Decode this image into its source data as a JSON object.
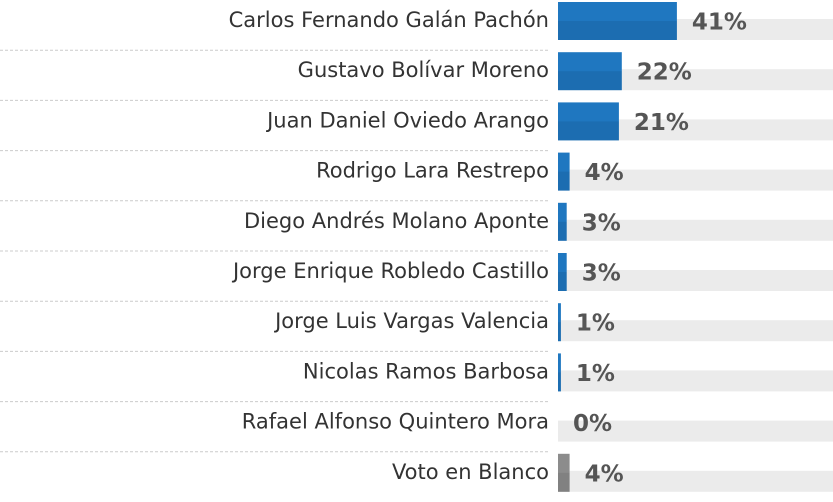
{
  "chart_data": {
    "type": "bar",
    "orientation": "horizontal",
    "categories": [
      "Carlos Fernando Galán Pachón",
      "Gustavo Bolívar Moreno",
      "Juan Daniel Oviedo Arango",
      "Rodrigo Lara Restrepo",
      "Diego Andrés Molano Aponte",
      "Jorge Enrique Robledo Castillo",
      "Jorge Luis Vargas Valencia",
      "Nicolas Ramos Barbosa",
      "Rafael Alfonso Quintero Mora",
      "Voto en Blanco"
    ],
    "values": [
      41,
      22,
      21,
      4,
      3,
      3,
      1,
      1,
      0,
      4
    ],
    "value_labels": [
      "41%",
      "22%",
      "21%",
      "4%",
      "3%",
      "3%",
      "1%",
      "1%",
      "0%",
      "4%"
    ],
    "colors": [
      "#1f77c0",
      "#1f77c0",
      "#1f77c0",
      "#1f77c0",
      "#1f77c0",
      "#1f77c0",
      "#1f77c0",
      "#1f77c0",
      "#1f77c0",
      "#8c8c8c"
    ]
  }
}
